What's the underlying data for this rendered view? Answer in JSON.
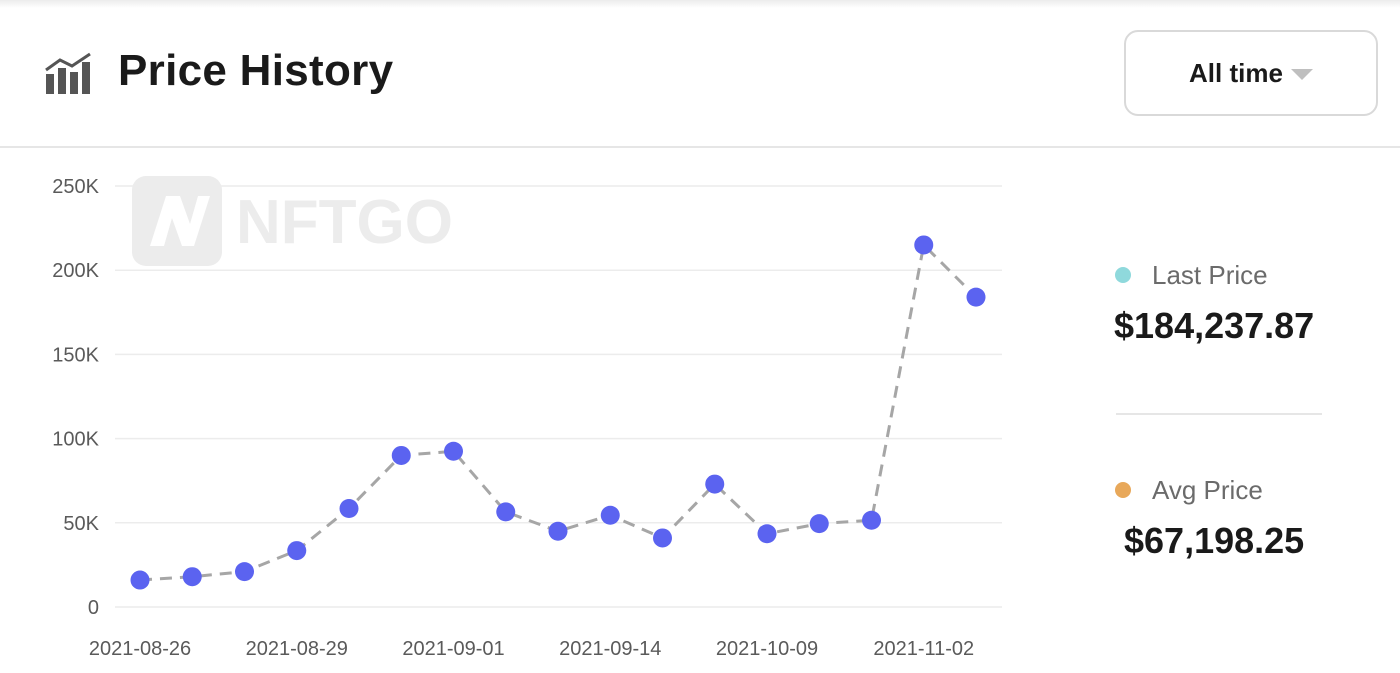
{
  "header": {
    "title": "Price History",
    "title_icon": "bar-chart-trend-icon",
    "range_select": {
      "label": "All time",
      "icon": "caret-down-icon"
    }
  },
  "watermark": {
    "text": "NFTGO"
  },
  "legend": {
    "last_price": {
      "label": "Last Price",
      "value": "$184,237.87",
      "color": "#8fd9dc"
    },
    "avg_price": {
      "label": "Avg Price",
      "value": "$67,198.25",
      "color": "#e8a85a"
    }
  },
  "colors": {
    "point": "#5b63f0",
    "line": "#a6a6a6",
    "grid": "#ececec"
  },
  "chart_data": {
    "type": "line",
    "title": "",
    "xlabel": "",
    "ylabel": "",
    "ylim": [
      0,
      250000
    ],
    "y_ticks": [
      "0",
      "50K",
      "100K",
      "150K",
      "200K",
      "250K"
    ],
    "x_tick_labels": [
      "2021-08-26",
      "2021-08-29",
      "2021-09-01",
      "2021-09-14",
      "2021-10-09",
      "2021-11-02"
    ],
    "grid": true,
    "line_style": "dashed",
    "series": [
      {
        "values": [
          16000,
          18000,
          21000,
          33500,
          58500,
          90000,
          92500,
          56500,
          45000,
          54500,
          41000,
          73000,
          43500,
          49500,
          51500,
          215000,
          184000
        ]
      }
    ]
  }
}
